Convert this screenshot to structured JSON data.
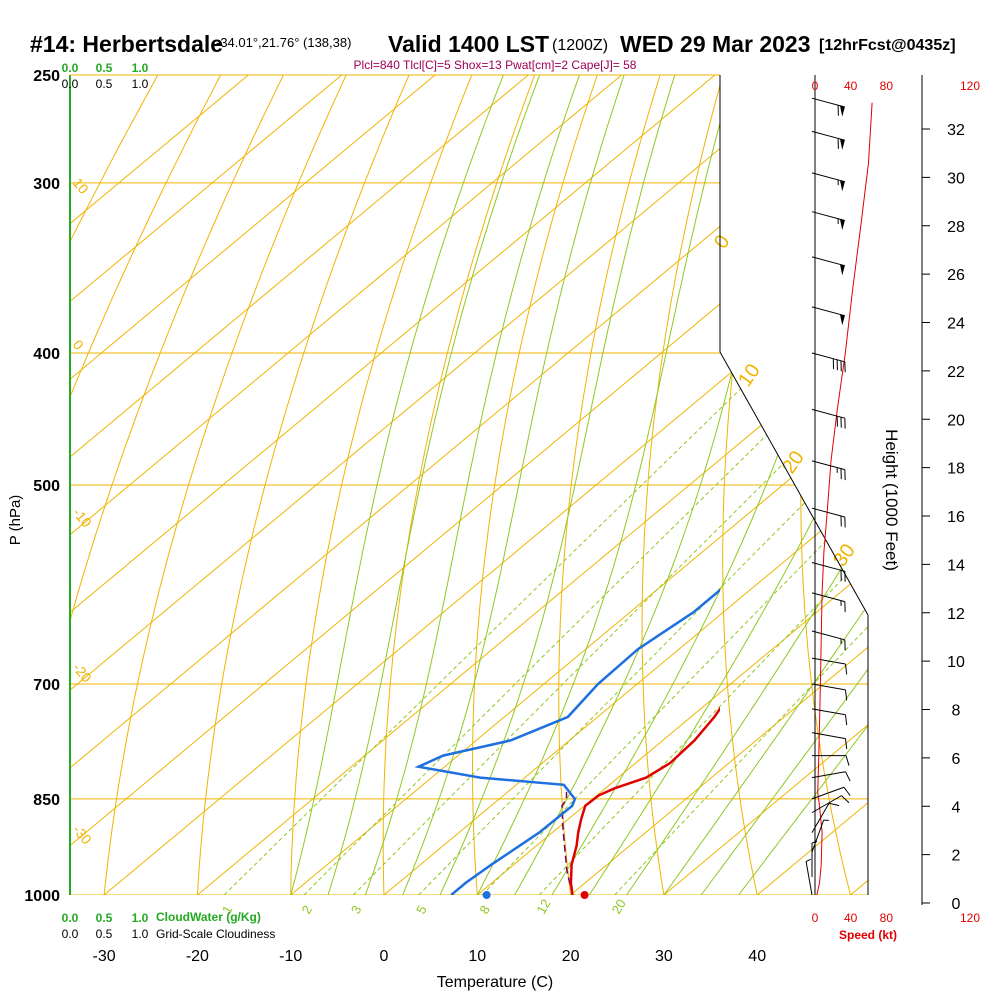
{
  "header": {
    "station": "#14: Herbertsdale",
    "coords": "-34.01°,21.76° (138,38)",
    "valid": "Valid 1400 LST",
    "utc": "(1200Z)",
    "date": "WED 29 Mar 2023",
    "forecast": "[12hrFcst@0435z]",
    "indices": "Plcl=840 Tlcl[C]=5 Shox=13 Pwat[cm]=2 Cape[J]= 58"
  },
  "colors": {
    "temperature": "#e00000",
    "dewpoint": "#1e6fe0",
    "parcel": "#7a0060",
    "isotherm_isobar": "#f0b400",
    "dry_adiabat": "#f0b400",
    "moist_adiabat": "#90c820",
    "mixing_ratio": "#90c820",
    "cloud": "#22aa22",
    "wind_speed": "#e00000",
    "header_accent": "#a0005a"
  },
  "chart_data": {
    "type": "line",
    "subtype": "skew-t log-p sounding",
    "xlabel": "Temperature (C)",
    "ylabel": "P (hPa)",
    "y2label": "Height (1000 Feet)",
    "x_ticks": [
      -30,
      -20,
      -10,
      0,
      10,
      20,
      30,
      40
    ],
    "p_ticks": [
      250,
      300,
      400,
      500,
      700,
      850,
      1000
    ],
    "height_ticks": [
      0,
      2,
      4,
      6,
      8,
      10,
      12,
      14,
      16,
      18,
      20,
      22,
      24,
      26,
      28,
      30,
      32
    ],
    "speed_ticks": [
      0,
      40,
      80,
      120
    ],
    "speed_label": "Speed (kt)",
    "cloud_water_label": "CloudWater (g/Kg)",
    "cloudiness_label": "Grid-Scale Cloudiness",
    "cloud_water_ticks": [
      "0.0",
      "0.5",
      "1.0"
    ],
    "cloudiness_ticks": [
      "0.0",
      "0.5",
      "1.0"
    ],
    "mixing_ratio_labels": [
      "1",
      "2",
      "3",
      "5",
      "8",
      "12",
      "20"
    ],
    "dry_adiabat_labels": [
      "10",
      "0",
      "-10",
      "-20",
      "-30"
    ],
    "moist_adiabat_labels": [
      "0",
      "10",
      "20",
      "30"
    ],
    "series": [
      {
        "name": "temperature",
        "points": [
          [
            1000,
            20.2
          ],
          [
            980,
            18.5
          ],
          [
            950,
            16.2
          ],
          [
            920,
            14.3
          ],
          [
            900,
            12.8
          ],
          [
            880,
            11.4
          ],
          [
            860,
            10.1
          ],
          [
            845,
            10.2
          ],
          [
            835,
            11.0
          ],
          [
            820,
            13.0
          ],
          [
            800,
            13.7
          ],
          [
            770,
            13.4
          ],
          [
            740,
            12.5
          ],
          [
            700,
            10.7
          ],
          [
            660,
            9.0
          ],
          [
            620,
            8.2
          ],
          [
            580,
            8.1
          ],
          [
            550,
            6.8
          ],
          [
            520,
            5.5
          ],
          [
            500,
            4.7
          ],
          [
            470,
            2.6
          ],
          [
            440,
            0.6
          ],
          [
            400,
            -2.6
          ],
          [
            370,
            -5.8
          ],
          [
            350,
            -8.3
          ],
          [
            320,
            -12.6
          ],
          [
            300,
            -16.3
          ],
          [
            270,
            -22.5
          ],
          [
            262,
            -24.1
          ]
        ]
      },
      {
        "name": "dewpoint",
        "points": [
          [
            1000,
            7.2
          ],
          [
            980,
            7.2
          ],
          [
            950,
            7.6
          ],
          [
            900,
            8.6
          ],
          [
            860,
            8.7
          ],
          [
            850,
            8.1
          ],
          [
            830,
            5.1
          ],
          [
            820,
            -4.8
          ],
          [
            805,
            -12.8
          ],
          [
            790,
            -11.6
          ],
          [
            770,
            -6.3
          ],
          [
            740,
            -3.2
          ],
          [
            700,
            -4.2
          ],
          [
            660,
            -4.4
          ],
          [
            620,
            -3.2
          ],
          [
            580,
            -3.2
          ],
          [
            550,
            -3.6
          ],
          [
            520,
            -4.3
          ],
          [
            500,
            -5.6
          ],
          [
            470,
            -6.0
          ],
          [
            440,
            -6.5
          ],
          [
            420,
            -8.2
          ],
          [
            400,
            -10.1
          ],
          [
            380,
            -13.0
          ],
          [
            360,
            -17.2
          ],
          [
            340,
            -20.8
          ],
          [
            320,
            -24.2
          ],
          [
            300,
            -27.6
          ],
          [
            280,
            -31.0
          ],
          [
            262,
            -34.0
          ]
        ]
      },
      {
        "name": "parcel",
        "points": [
          [
            1000,
            20.2
          ],
          [
            960,
            16.5
          ],
          [
            920,
            13.0
          ],
          [
            890,
            10.3
          ],
          [
            860,
            7.6
          ],
          [
            850,
            7.2
          ],
          [
            840,
            6.3
          ]
        ]
      },
      {
        "name": "wind_speed",
        "points": [
          [
            1000,
            2
          ],
          [
            980,
            5
          ],
          [
            950,
            7
          ],
          [
            900,
            8
          ],
          [
            860,
            5
          ],
          [
            840,
            3
          ],
          [
            800,
            4
          ],
          [
            750,
            5
          ],
          [
            700,
            6
          ],
          [
            650,
            7
          ],
          [
            600,
            8
          ],
          [
            560,
            10
          ],
          [
            520,
            14
          ],
          [
            480,
            18
          ],
          [
            440,
            25
          ],
          [
            400,
            34
          ],
          [
            360,
            42
          ],
          [
            320,
            52
          ],
          [
            290,
            60
          ],
          [
            262,
            64
          ]
        ]
      }
    ],
    "surface_points": [
      {
        "name": "surface temperature",
        "p": 1000,
        "t": 21.5
      },
      {
        "name": "surface dewpoint",
        "p": 1000,
        "t": 11.0
      }
    ],
    "wind_barbs": [
      {
        "p": 1000,
        "dir": 170,
        "spd": 5
      },
      {
        "p": 970,
        "dir": 180,
        "spd": 5
      },
      {
        "p": 930,
        "dir": 200,
        "spd": 5
      },
      {
        "p": 900,
        "dir": 210,
        "spd": 10
      },
      {
        "p": 870,
        "dir": 240,
        "spd": 10
      },
      {
        "p": 850,
        "dir": 250,
        "spd": 10
      },
      {
        "p": 820,
        "dir": 260,
        "spd": 10
      },
      {
        "p": 790,
        "dir": 270,
        "spd": 10
      },
      {
        "p": 760,
        "dir": 280,
        "spd": 10
      },
      {
        "p": 730,
        "dir": 280,
        "spd": 10
      },
      {
        "p": 700,
        "dir": 280,
        "spd": 10
      },
      {
        "p": 670,
        "dir": 280,
        "spd": 10
      },
      {
        "p": 640,
        "dir": 285,
        "spd": 15
      },
      {
        "p": 600,
        "dir": 285,
        "spd": 15
      },
      {
        "p": 570,
        "dir": 285,
        "spd": 20
      },
      {
        "p": 520,
        "dir": 285,
        "spd": 20
      },
      {
        "p": 480,
        "dir": 285,
        "spd": 25
      },
      {
        "p": 440,
        "dir": 285,
        "spd": 30
      },
      {
        "p": 400,
        "dir": 285,
        "spd": 40
      },
      {
        "p": 370,
        "dir": 285,
        "spd": 50
      },
      {
        "p": 340,
        "dir": 285,
        "spd": 50
      },
      {
        "p": 315,
        "dir": 285,
        "spd": 55
      },
      {
        "p": 295,
        "dir": 285,
        "spd": 55
      },
      {
        "p": 275,
        "dir": 285,
        "spd": 60
      },
      {
        "p": 260,
        "dir": 285,
        "spd": 60
      }
    ]
  }
}
